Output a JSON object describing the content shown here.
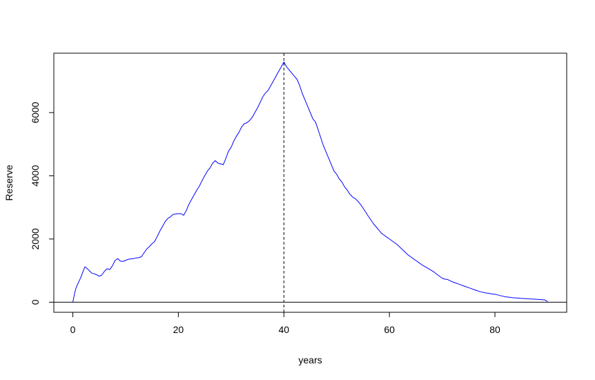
{
  "chart_data": {
    "type": "line",
    "xlabel": "years",
    "ylabel": "Reserve",
    "xlim": [
      -3.6,
      93.6
    ],
    "ylim": [
      -320,
      7880
    ],
    "x_ticks": [
      0,
      20,
      40,
      60,
      80
    ],
    "y_ticks": [
      0,
      2000,
      4000,
      6000
    ],
    "grid": false,
    "legend": "none",
    "hline": {
      "y": 0,
      "color": "#000000"
    },
    "vline": {
      "x": 40,
      "style": "dashed",
      "color": "#000000"
    },
    "series": [
      {
        "color": "#0000ff",
        "points": [
          [
            0,
            0
          ],
          [
            0.3,
            250
          ],
          [
            0.6,
            450
          ],
          [
            1.0,
            600
          ],
          [
            1.5,
            780
          ],
          [
            2.0,
            1000
          ],
          [
            2.3,
            1120
          ],
          [
            2.8,
            1050
          ],
          [
            3.2,
            980
          ],
          [
            3.6,
            920
          ],
          [
            4.0,
            900
          ],
          [
            4.5,
            870
          ],
          [
            5.0,
            820
          ],
          [
            5.5,
            860
          ],
          [
            6.0,
            980
          ],
          [
            6.5,
            1060
          ],
          [
            7.0,
            1030
          ],
          [
            7.5,
            1150
          ],
          [
            8.0,
            1320
          ],
          [
            8.5,
            1380
          ],
          [
            9.0,
            1300
          ],
          [
            9.5,
            1290
          ],
          [
            10.0,
            1320
          ],
          [
            10.5,
            1360
          ],
          [
            11.0,
            1370
          ],
          [
            11.5,
            1380
          ],
          [
            12.0,
            1400
          ],
          [
            12.5,
            1410
          ],
          [
            13.0,
            1440
          ],
          [
            13.5,
            1560
          ],
          [
            14.0,
            1680
          ],
          [
            14.5,
            1760
          ],
          [
            15.0,
            1850
          ],
          [
            15.5,
            1920
          ],
          [
            16.0,
            2080
          ],
          [
            16.5,
            2250
          ],
          [
            17.0,
            2400
          ],
          [
            17.5,
            2550
          ],
          [
            18.0,
            2650
          ],
          [
            18.5,
            2700
          ],
          [
            19.0,
            2780
          ],
          [
            19.5,
            2790
          ],
          [
            20.0,
            2800
          ],
          [
            20.5,
            2800
          ],
          [
            21.0,
            2750
          ],
          [
            21.5,
            2900
          ],
          [
            22.0,
            3100
          ],
          [
            22.5,
            3250
          ],
          [
            23.0,
            3400
          ],
          [
            23.5,
            3550
          ],
          [
            24.0,
            3680
          ],
          [
            24.5,
            3850
          ],
          [
            25.0,
            4000
          ],
          [
            25.5,
            4150
          ],
          [
            26.0,
            4250
          ],
          [
            26.5,
            4400
          ],
          [
            27.0,
            4480
          ],
          [
            27.5,
            4400
          ],
          [
            28.0,
            4380
          ],
          [
            28.5,
            4350
          ],
          [
            29.0,
            4550
          ],
          [
            29.5,
            4780
          ],
          [
            30.0,
            4900
          ],
          [
            30.5,
            5100
          ],
          [
            31.0,
            5250
          ],
          [
            31.5,
            5380
          ],
          [
            32.0,
            5550
          ],
          [
            32.5,
            5650
          ],
          [
            33.0,
            5680
          ],
          [
            33.5,
            5750
          ],
          [
            34.0,
            5850
          ],
          [
            34.5,
            6000
          ],
          [
            35.0,
            6150
          ],
          [
            35.5,
            6320
          ],
          [
            36.0,
            6500
          ],
          [
            36.5,
            6620
          ],
          [
            37.0,
            6700
          ],
          [
            37.5,
            6850
          ],
          [
            38.0,
            7000
          ],
          [
            38.5,
            7150
          ],
          [
            39.0,
            7300
          ],
          [
            39.5,
            7450
          ],
          [
            40.0,
            7600
          ],
          [
            40.5,
            7450
          ],
          [
            41.0,
            7350
          ],
          [
            41.5,
            7250
          ],
          [
            42.0,
            7150
          ],
          [
            42.5,
            7050
          ],
          [
            43.0,
            6850
          ],
          [
            43.5,
            6600
          ],
          [
            44.0,
            6400
          ],
          [
            44.5,
            6200
          ],
          [
            45.0,
            6000
          ],
          [
            45.5,
            5800
          ],
          [
            46.0,
            5700
          ],
          [
            46.5,
            5450
          ],
          [
            47.0,
            5200
          ],
          [
            47.5,
            4950
          ],
          [
            48.0,
            4750
          ],
          [
            48.5,
            4550
          ],
          [
            49.0,
            4350
          ],
          [
            49.5,
            4150
          ],
          [
            50.0,
            4050
          ],
          [
            50.5,
            3900
          ],
          [
            51.0,
            3800
          ],
          [
            51.5,
            3650
          ],
          [
            52.0,
            3550
          ],
          [
            52.5,
            3420
          ],
          [
            53.0,
            3330
          ],
          [
            53.5,
            3280
          ],
          [
            54.0,
            3200
          ],
          [
            54.5,
            3100
          ],
          [
            55.0,
            2980
          ],
          [
            55.5,
            2850
          ],
          [
            56.0,
            2720
          ],
          [
            56.5,
            2600
          ],
          [
            57.0,
            2480
          ],
          [
            57.5,
            2380
          ],
          [
            58.0,
            2280
          ],
          [
            58.5,
            2180
          ],
          [
            59.0,
            2120
          ],
          [
            59.5,
            2060
          ],
          [
            60.0,
            2000
          ],
          [
            60.5,
            1940
          ],
          [
            61.0,
            1880
          ],
          [
            61.5,
            1820
          ],
          [
            62.0,
            1740
          ],
          [
            62.5,
            1660
          ],
          [
            63.0,
            1580
          ],
          [
            63.5,
            1500
          ],
          [
            64.0,
            1440
          ],
          [
            64.5,
            1380
          ],
          [
            65.0,
            1320
          ],
          [
            65.5,
            1260
          ],
          [
            66.0,
            1200
          ],
          [
            66.5,
            1150
          ],
          [
            67.0,
            1100
          ],
          [
            67.5,
            1050
          ],
          [
            68.0,
            1000
          ],
          [
            68.5,
            950
          ],
          [
            69.0,
            880
          ],
          [
            69.5,
            820
          ],
          [
            70.0,
            760
          ],
          [
            70.5,
            730
          ],
          [
            71.0,
            720
          ],
          [
            71.5,
            680
          ],
          [
            72.0,
            640
          ],
          [
            72.5,
            610
          ],
          [
            73.0,
            580
          ],
          [
            73.5,
            550
          ],
          [
            74.0,
            520
          ],
          [
            74.5,
            490
          ],
          [
            75.0,
            460
          ],
          [
            75.5,
            430
          ],
          [
            76.0,
            400
          ],
          [
            76.5,
            370
          ],
          [
            77.0,
            340
          ],
          [
            77.5,
            320
          ],
          [
            78.0,
            300
          ],
          [
            78.5,
            285
          ],
          [
            79.0,
            275
          ],
          [
            79.5,
            260
          ],
          [
            80.0,
            250
          ],
          [
            80.5,
            230
          ],
          [
            81.0,
            210
          ],
          [
            81.5,
            190
          ],
          [
            82.0,
            170
          ],
          [
            82.5,
            160
          ],
          [
            83.0,
            150
          ],
          [
            83.5,
            140
          ],
          [
            84.0,
            135
          ],
          [
            84.5,
            128
          ],
          [
            85.0,
            120
          ],
          [
            85.5,
            115
          ],
          [
            86.0,
            110
          ],
          [
            86.5,
            105
          ],
          [
            87.0,
            100
          ],
          [
            87.5,
            95
          ],
          [
            88.0,
            90
          ],
          [
            88.5,
            85
          ],
          [
            89.0,
            80
          ],
          [
            89.5,
            70
          ],
          [
            90.0,
            20
          ]
        ]
      }
    ]
  }
}
